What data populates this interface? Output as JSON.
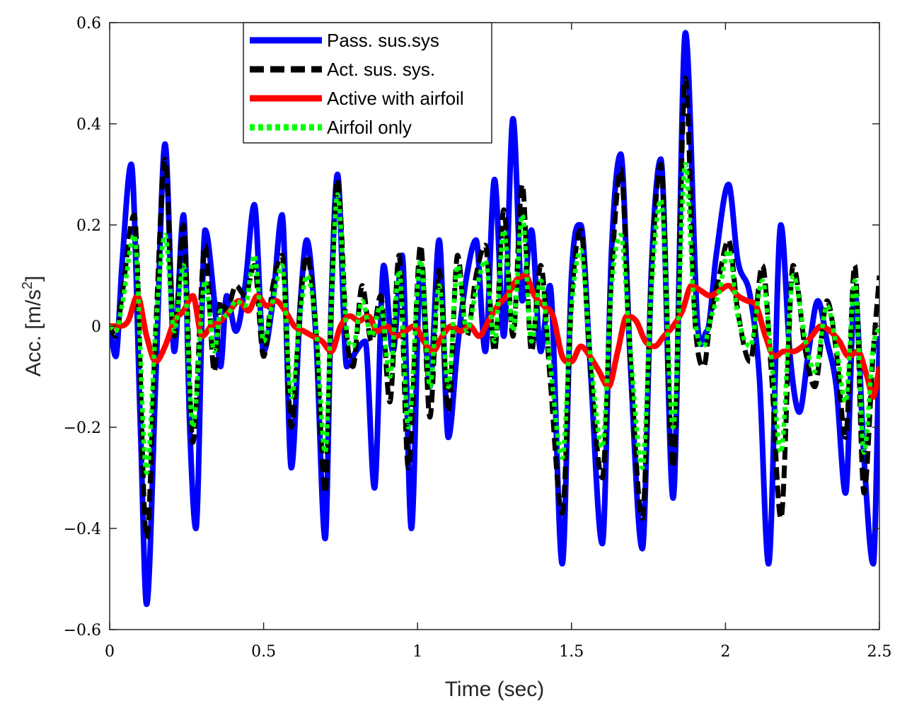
{
  "chart_data": {
    "type": "line",
    "title": "",
    "xlabel": "Time (sec)",
    "ylabel_prefix": "Acc. [m/s",
    "ylabel_superscript": "2",
    "ylabel_suffix": "]",
    "xlim": [
      0,
      2.5
    ],
    "ylim": [
      -0.6,
      0.6
    ],
    "xticks": [
      {
        "value": 0,
        "label": "0"
      },
      {
        "value": 0.5,
        "label": "0.5"
      },
      {
        "value": 1,
        "label": "1"
      },
      {
        "value": 1.5,
        "label": "1.5"
      },
      {
        "value": 2,
        "label": "2"
      },
      {
        "value": 2.5,
        "label": "2.5"
      }
    ],
    "yticks": [
      {
        "value": -0.6,
        "label": "−0.6"
      },
      {
        "value": -0.4,
        "label": "−0.4"
      },
      {
        "value": -0.2,
        "label": "−0.2"
      },
      {
        "value": 0,
        "label": "0"
      },
      {
        "value": 0.2,
        "label": "0.2"
      },
      {
        "value": 0.4,
        "label": "0.4"
      },
      {
        "value": 0.6,
        "label": "0.6"
      }
    ],
    "grid": false,
    "legend_position": "top-left",
    "series": [
      {
        "name": "Pass. sus.sys",
        "color": "#0000ff",
        "style": "solid",
        "x": [
          0,
          0.02,
          0.04,
          0.07,
          0.1,
          0.12,
          0.15,
          0.18,
          0.21,
          0.24,
          0.26,
          0.28,
          0.31,
          0.34,
          0.36,
          0.38,
          0.41,
          0.44,
          0.47,
          0.5,
          0.53,
          0.56,
          0.59,
          0.62,
          0.64,
          0.67,
          0.7,
          0.72,
          0.74,
          0.77,
          0.8,
          0.83,
          0.86,
          0.89,
          0.92,
          0.95,
          0.98,
          1.01,
          1.04,
          1.07,
          1.1,
          1.13,
          1.16,
          1.19,
          1.22,
          1.25,
          1.28,
          1.31,
          1.34,
          1.37,
          1.4,
          1.43,
          1.47,
          1.5,
          1.53,
          1.56,
          1.6,
          1.63,
          1.66,
          1.69,
          1.73,
          1.76,
          1.79,
          1.83,
          1.87,
          1.91,
          1.94,
          1.97,
          2.01,
          2.04,
          2.08,
          2.11,
          2.14,
          2.18,
          2.21,
          2.24,
          2.27,
          2.3,
          2.33,
          2.36,
          2.39,
          2.42,
          2.45,
          2.48,
          2.5
        ],
        "values": [
          0,
          -0.06,
          0.12,
          0.32,
          -0.2,
          -0.55,
          -0.1,
          0.36,
          -0.05,
          0.22,
          -0.2,
          -0.4,
          0.19,
          0.05,
          -0.08,
          0.06,
          -0.01,
          0.08,
          0.24,
          -0.05,
          0.05,
          0.22,
          -0.28,
          0.05,
          0.17,
          -0.02,
          -0.42,
          0.05,
          0.3,
          -0.08,
          -0.05,
          -0.03,
          -0.32,
          0.12,
          -0.05,
          0.14,
          -0.4,
          0.12,
          -0.12,
          0.17,
          -0.22,
          -0.04,
          0.1,
          0.17,
          -0.05,
          0.29,
          -0.02,
          0.41,
          0.05,
          0.19,
          -0.05,
          0.08,
          -0.47,
          0.1,
          0.2,
          -0.07,
          -0.43,
          0.15,
          0.34,
          -0.06,
          -0.44,
          0.12,
          0.33,
          -0.34,
          0.58,
          0.0,
          -0.01,
          0.14,
          0.28,
          0.13,
          0.06,
          -0.1,
          -0.47,
          0.2,
          -0.06,
          -0.17,
          -0.05,
          0.05,
          -0.03,
          -0.12,
          -0.33,
          0.07,
          -0.26,
          -0.47,
          -0.02
        ]
      },
      {
        "name": "Act. sus. sys.",
        "color": "#000000",
        "style": "dashed",
        "x": [
          0,
          0.02,
          0.04,
          0.08,
          0.12,
          0.15,
          0.18,
          0.21,
          0.24,
          0.27,
          0.31,
          0.34,
          0.36,
          0.38,
          0.41,
          0.44,
          0.47,
          0.5,
          0.53,
          0.56,
          0.59,
          0.62,
          0.64,
          0.67,
          0.7,
          0.72,
          0.74,
          0.77,
          0.79,
          0.82,
          0.85,
          0.88,
          0.91,
          0.94,
          0.97,
          1.01,
          1.04,
          1.07,
          1.1,
          1.13,
          1.16,
          1.19,
          1.22,
          1.25,
          1.28,
          1.31,
          1.34,
          1.37,
          1.4,
          1.43,
          1.47,
          1.5,
          1.53,
          1.56,
          1.6,
          1.63,
          1.66,
          1.69,
          1.73,
          1.76,
          1.79,
          1.83,
          1.87,
          1.9,
          1.93,
          1.95,
          1.98,
          2.01,
          2.04,
          2.08,
          2.12,
          2.15,
          2.18,
          2.22,
          2.26,
          2.29,
          2.33,
          2.36,
          2.39,
          2.42,
          2.45,
          2.48,
          2.5
        ],
        "values": [
          0,
          -0.02,
          0.06,
          0.22,
          -0.42,
          0.0,
          0.33,
          -0.02,
          0.2,
          -0.23,
          0.16,
          -0.09,
          0.05,
          0.03,
          0.08,
          0.06,
          0.12,
          -0.06,
          0.08,
          0.14,
          -0.2,
          0.05,
          0.14,
          -0.01,
          -0.33,
          0.05,
          0.29,
          -0.02,
          -0.08,
          0.08,
          -0.03,
          0.06,
          -0.15,
          0.14,
          -0.28,
          0.16,
          -0.18,
          0.11,
          -0.17,
          0.14,
          -0.02,
          0.1,
          0.16,
          -0.05,
          0.23,
          -0.02,
          0.28,
          -0.05,
          0.12,
          -0.1,
          -0.37,
          0.05,
          0.19,
          -0.07,
          -0.3,
          0.1,
          0.31,
          -0.05,
          -0.38,
          0.1,
          0.32,
          -0.28,
          0.49,
          0.02,
          -0.08,
          0.01,
          0.1,
          0.17,
          0.03,
          -0.07,
          0.12,
          -0.1,
          -0.38,
          0.12,
          -0.05,
          -0.12,
          0.05,
          -0.05,
          -0.22,
          0.12,
          -0.33,
          -0.05,
          0.1
        ]
      },
      {
        "name": "Active with airfoil",
        "color": "#ff0000",
        "style": "solid",
        "x": [
          0,
          0.03,
          0.06,
          0.09,
          0.12,
          0.15,
          0.18,
          0.21,
          0.24,
          0.27,
          0.3,
          0.33,
          0.36,
          0.39,
          0.42,
          0.45,
          0.48,
          0.51,
          0.54,
          0.57,
          0.6,
          0.63,
          0.66,
          0.69,
          0.72,
          0.75,
          0.78,
          0.81,
          0.84,
          0.87,
          0.9,
          0.93,
          0.96,
          0.99,
          1.02,
          1.05,
          1.08,
          1.11,
          1.14,
          1.17,
          1.2,
          1.23,
          1.26,
          1.29,
          1.32,
          1.35,
          1.38,
          1.41,
          1.44,
          1.47,
          1.5,
          1.53,
          1.56,
          1.59,
          1.62,
          1.65,
          1.68,
          1.71,
          1.74,
          1.77,
          1.8,
          1.83,
          1.86,
          1.89,
          1.92,
          1.95,
          1.98,
          2.01,
          2.04,
          2.07,
          2.1,
          2.13,
          2.16,
          2.19,
          2.22,
          2.25,
          2.28,
          2.31,
          2.34,
          2.37,
          2.4,
          2.43,
          2.46,
          2.48,
          2.5
        ],
        "values": [
          0.0,
          0.0,
          0.01,
          0.06,
          -0.02,
          -0.07,
          -0.04,
          0.01,
          0.03,
          0.06,
          -0.02,
          0.0,
          0.01,
          0.03,
          0.05,
          0.03,
          0.06,
          0.04,
          0.05,
          0.03,
          0.0,
          -0.01,
          -0.02,
          -0.03,
          -0.05,
          0.0,
          0.02,
          0.01,
          0.02,
          -0.01,
          0.0,
          -0.02,
          -0.01,
          0.0,
          -0.03,
          -0.05,
          -0.02,
          0.0,
          -0.01,
          0.0,
          -0.02,
          0.01,
          0.04,
          0.06,
          0.09,
          0.1,
          0.06,
          0.04,
          0.02,
          -0.06,
          -0.07,
          -0.04,
          -0.06,
          -0.09,
          -0.12,
          -0.05,
          0.02,
          0.01,
          -0.03,
          -0.04,
          -0.02,
          0.0,
          0.03,
          0.08,
          0.07,
          0.06,
          0.07,
          0.08,
          0.06,
          0.05,
          0.04,
          -0.02,
          -0.06,
          -0.05,
          -0.05,
          -0.04,
          -0.02,
          0.0,
          -0.01,
          -0.03,
          -0.06,
          -0.05,
          -0.1,
          -0.14,
          -0.08
        ]
      },
      {
        "name": "Airfoil only",
        "color": "#00ff00",
        "style": "dotted",
        "x": [
          0,
          0.02,
          0.04,
          0.08,
          0.12,
          0.15,
          0.18,
          0.21,
          0.24,
          0.27,
          0.31,
          0.34,
          0.36,
          0.38,
          0.41,
          0.44,
          0.47,
          0.5,
          0.53,
          0.56,
          0.59,
          0.62,
          0.64,
          0.67,
          0.7,
          0.72,
          0.74,
          0.77,
          0.79,
          0.82,
          0.85,
          0.88,
          0.91,
          0.94,
          0.97,
          1.01,
          1.04,
          1.07,
          1.1,
          1.13,
          1.16,
          1.19,
          1.22,
          1.25,
          1.28,
          1.31,
          1.34,
          1.37,
          1.4,
          1.43,
          1.47,
          1.5,
          1.53,
          1.56,
          1.6,
          1.63,
          1.66,
          1.69,
          1.73,
          1.76,
          1.79,
          1.83,
          1.87,
          1.9,
          1.93,
          1.95,
          1.98,
          2.01,
          2.04,
          2.08,
          2.12,
          2.15,
          2.18,
          2.22,
          2.26,
          2.29,
          2.33,
          2.36,
          2.39,
          2.42,
          2.45,
          2.48,
          2.5
        ],
        "values": [
          0,
          -0.01,
          0.04,
          0.18,
          -0.29,
          0.0,
          0.18,
          -0.01,
          0.12,
          -0.2,
          0.09,
          -0.05,
          0.03,
          0.02,
          0.05,
          0.04,
          0.14,
          -0.03,
          0.05,
          0.12,
          -0.14,
          0.03,
          0.1,
          0.0,
          -0.25,
          0.04,
          0.26,
          -0.01,
          -0.04,
          0.05,
          -0.02,
          0.04,
          -0.1,
          0.11,
          -0.2,
          0.13,
          -0.12,
          0.08,
          -0.12,
          0.12,
          -0.01,
          0.07,
          0.13,
          -0.03,
          0.19,
          -0.01,
          0.22,
          -0.03,
          0.09,
          -0.07,
          -0.26,
          0.04,
          0.15,
          -0.05,
          -0.24,
          0.08,
          0.18,
          -0.04,
          -0.28,
          0.08,
          0.25,
          -0.2,
          0.32,
          0.02,
          -0.04,
          0.01,
          0.07,
          0.15,
          0.02,
          -0.04,
          0.09,
          -0.07,
          -0.25,
          0.1,
          -0.03,
          -0.09,
          0.04,
          -0.04,
          -0.15,
          0.09,
          -0.25,
          -0.04,
          0.0
        ]
      }
    ]
  }
}
